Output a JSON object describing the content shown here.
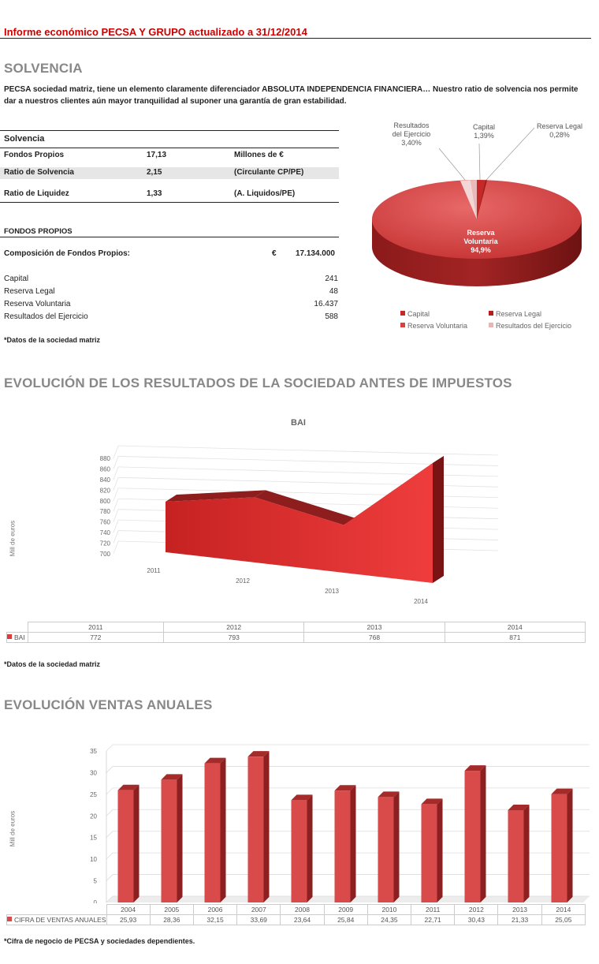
{
  "header": {
    "title": "Informe económico PECSA Y GRUPO actualizado a 31/12/2014"
  },
  "solvencia": {
    "heading": "SOLVENCIA",
    "intro": "PECSA sociedad matriz, tiene un elemento claramente diferenciador ABSOLUTA INDEPENDENCIA FINANCIERA… Nuestro ratio de solvencia nos permite dar a nuestros clientes aún mayor tranquilidad al suponer una garantía de gran estabilidad.",
    "table_title": "Solvencia",
    "rows": [
      {
        "label": "Fondos Propios",
        "value": "17,13",
        "unit": "Millones de €"
      },
      {
        "label": "Ratio de Solvencia",
        "value": "2,15",
        "unit": "(Circulante CP/PE)"
      },
      {
        "label": "Ratio de Liquidez",
        "value": "1,33",
        "unit": "(A. Liquidos/PE)"
      }
    ],
    "fp_title": "FONDOS PROPIOS",
    "composition_label": "Composición de Fondos Propios:",
    "composition_currency": "€",
    "composition_value": "17.134.000",
    "items": [
      {
        "label": "Capital",
        "value": "241"
      },
      {
        "label": "Reserva Legal",
        "value": "48"
      },
      {
        "label": "Reserva Voluntaria",
        "value": "16.437"
      },
      {
        "label": "Resultados del Ejercicio",
        "value": "588"
      }
    ],
    "note": "*Datos de la sociedad matriz"
  },
  "pie": {
    "labels": {
      "resultados": [
        "Resultados",
        "del Ejercicio",
        "3,40%"
      ],
      "capital": [
        "Capital",
        "1,39%"
      ],
      "legal": [
        "Reserva Legal",
        "0,28%"
      ],
      "voluntaria": [
        "Reserva",
        "Voluntaria",
        "94,9%"
      ]
    },
    "legend": [
      "Capital",
      "Reserva Legal",
      "Reserva Voluntaria",
      "Resultados del Ejercicio"
    ]
  },
  "bai": {
    "heading": "EVOLUCIÓN DE LOS RESULTADOS DE LA SOCIEDAD ANTES DE IMPUESTOS",
    "note": "*Datos de la sociedad matriz"
  },
  "ventas": {
    "heading": "EVOLUCIÓN VENTAS ANUALES",
    "note": "*Cifra de negocio de PECSA y sociedades dependientes."
  },
  "chart_data": [
    {
      "type": "pie",
      "categories": [
        "Capital",
        "Reserva Legal",
        "Reserva Voluntaria",
        "Resultados del Ejercicio"
      ],
      "values": [
        1.39,
        0.28,
        94.9,
        3.4
      ],
      "colors": [
        "#c62828",
        "#b71c1c",
        "#d94040",
        "#e8b4b4"
      ]
    },
    {
      "type": "area",
      "title": "BAI",
      "ylabel": "Mill de euros",
      "categories": [
        "2011",
        "2012",
        "2013",
        "2014"
      ],
      "series": [
        {
          "name": "BAI",
          "values": [
            772,
            793,
            768,
            871
          ]
        }
      ],
      "display_values": [
        "772",
        "793",
        "768",
        "871"
      ],
      "ylim": [
        700,
        880
      ],
      "yticks": [
        "700",
        "720",
        "740",
        "760",
        "780",
        "800",
        "820",
        "840",
        "860",
        "880"
      ],
      "color": "#e03a3a"
    },
    {
      "type": "bar",
      "ylabel": "Mill de euros",
      "categories": [
        "2004",
        "2005",
        "2006",
        "2007",
        "2008",
        "2009",
        "2010",
        "2011",
        "2012",
        "2013",
        "2014"
      ],
      "series": [
        {
          "name": "CIFRA DE VENTAS ANUALES",
          "values": [
            25.93,
            28.36,
            32.15,
            33.69,
            23.64,
            25.84,
            24.35,
            22.71,
            30.43,
            21.33,
            25.05
          ]
        }
      ],
      "display_values": [
        "25,93",
        "28,36",
        "32,15",
        "33,69",
        "23,64",
        "25,84",
        "24,35",
        "22,71",
        "30,43",
        "21,33",
        "25,05"
      ],
      "ylim": [
        0,
        35
      ],
      "yticks": [
        "0",
        "5",
        "10",
        "15",
        "20",
        "25",
        "30",
        "35"
      ],
      "color": "#d94a4a"
    }
  ]
}
